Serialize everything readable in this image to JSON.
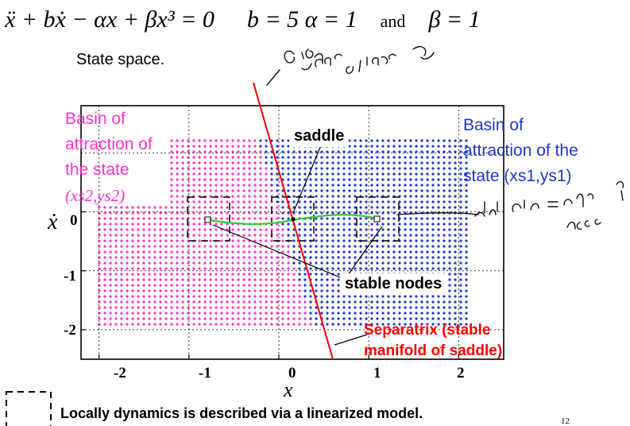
{
  "equation": {
    "lhs": "ẍ + bẋ − αx + βx³ = 0",
    "params": "b = 5    α = 1",
    "and": "and",
    "beta": "β = 1"
  },
  "title": "State space.",
  "labels": {
    "basin_left_line1": "Basin of",
    "basin_left_line2": "attraction of",
    "basin_left_line3": "the state",
    "basin_left_line4": "(xs2,ys2)",
    "basin_right_line1": "Basin of",
    "basin_right_line2": "attraction of the",
    "basin_right_line3": "state (xs1,ys1)",
    "saddle": "saddle",
    "stable_nodes": "stable nodes",
    "separatrix_line1": "Separatrix (stable",
    "separatrix_line2": "manifold of saddle)"
  },
  "axes": {
    "xlabel": "x",
    "ylabel": "ẋ",
    "xticks": [
      "-2",
      "-1",
      "0",
      "1",
      "2"
    ],
    "yticks": [
      "0",
      "-1",
      "-2"
    ]
  },
  "footer": "Locally dynamics is described via a linearized model.",
  "page_number": "12",
  "handwritten_notes": [
    "eigen vector of linearized sys",
    "stable sln = stable node"
  ],
  "colors": {
    "left_basin": "#ff33cc",
    "right_basin": "#1f36c8",
    "separatrix": "#ff0000",
    "trajectory": "#33cc33"
  },
  "chart_data": {
    "type": "scatter",
    "xlim": [
      -2.2,
      2.5
    ],
    "ylim": [
      -2.5,
      1.8
    ],
    "grid": true,
    "separatrix": {
      "x0": 0,
      "y0": 0,
      "slope": -5.2
    },
    "fixed_points": [
      {
        "name": "saddle",
        "x": 0,
        "y": 0
      },
      {
        "name": "stable node",
        "x": -1,
        "y": 0
      },
      {
        "name": "stable node",
        "x": 1,
        "y": 0
      }
    ]
  }
}
